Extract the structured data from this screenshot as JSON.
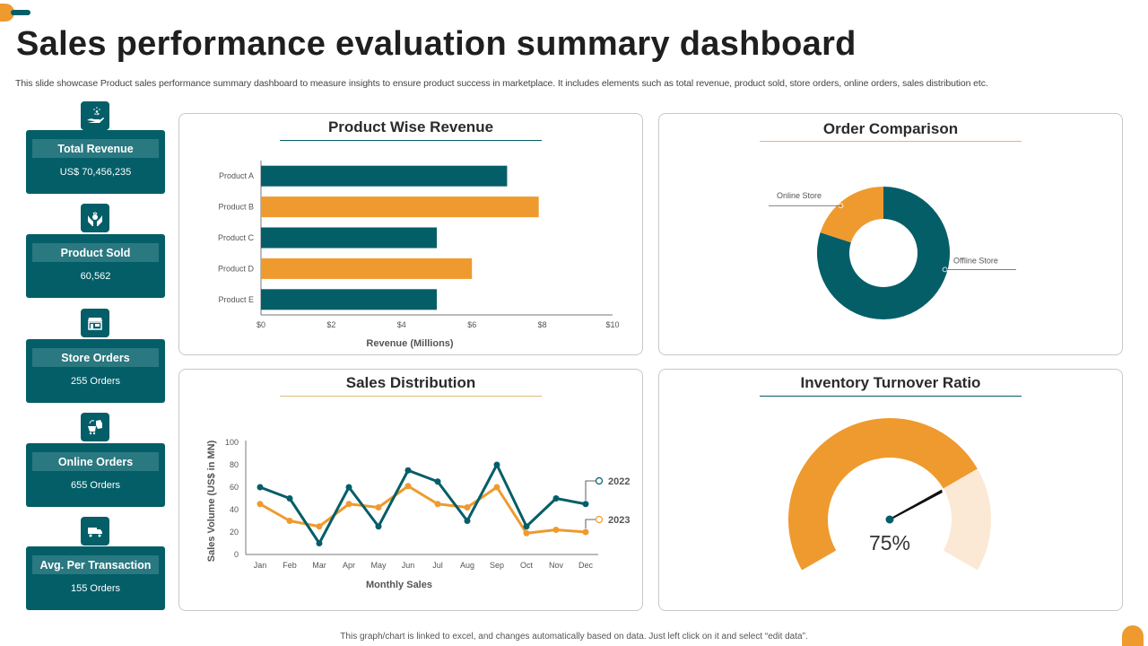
{
  "header": {
    "title": "Sales performance evaluation summary dashboard",
    "subtitle": "This slide showcase Product sales performance summary dashboard to measure insights to ensure product success in marketplace. It includes elements such as total revenue, product sold, store orders, online orders, sales distribution etc."
  },
  "kpis": [
    {
      "icon": "money-hand-icon",
      "label": "Total Revenue",
      "value": "US$ 70,456,235"
    },
    {
      "icon": "hands-product-icon",
      "label": "Product Sold",
      "value": "60,562"
    },
    {
      "icon": "storefront-icon",
      "label": "Store Orders",
      "value": "255 Orders"
    },
    {
      "icon": "cart-box-icon",
      "label": "Online Orders",
      "value": "655 Orders"
    },
    {
      "icon": "truck-icon",
      "label": "Avg. Per Transaction",
      "value": "155 Orders"
    }
  ],
  "colors": {
    "teal": "#035e68",
    "orange": "#ef9a2e",
    "light_orange": "#fbe9d5"
  },
  "footer": "This graph/chart is linked to excel, and changes automatically based on data. Just left click on it and select “edit data”.",
  "chart_data": [
    {
      "id": "product-revenue",
      "type": "bar",
      "orientation": "horizontal",
      "title": "Product Wise Revenue",
      "categories": [
        "Product A",
        "Product B",
        "Product C",
        "Product D",
        "Product E"
      ],
      "values": [
        7,
        7.9,
        5,
        6,
        5
      ],
      "bar_colors": [
        "#035e68",
        "#ef9a2e",
        "#035e68",
        "#ef9a2e",
        "#035e68"
      ],
      "xlabel": "Revenue (Millions)",
      "ylabel": "",
      "xlim": [
        0,
        10
      ],
      "xticks": [
        "$0",
        "$2",
        "$4",
        "$6",
        "$8",
        "$10"
      ],
      "grid": false
    },
    {
      "id": "order-comparison",
      "type": "pie",
      "donut": true,
      "title": "Order Comparison",
      "labels": [
        "Offline Store",
        "Online Store"
      ],
      "values": [
        80,
        20
      ],
      "colors": [
        "#035e68",
        "#ef9a2e"
      ]
    },
    {
      "id": "sales-distribution",
      "type": "line",
      "title": "Sales Distribution",
      "x": [
        "Jan",
        "Feb",
        "Mar",
        "Apr",
        "May",
        "Jun",
        "Jul",
        "Aug",
        "Sep",
        "Oct",
        "Nov",
        "Dec"
      ],
      "series": [
        {
          "name": "2022",
          "color": "#035e68",
          "values": [
            60,
            50,
            10,
            60,
            25,
            75,
            65,
            30,
            80,
            25,
            50,
            45
          ]
        },
        {
          "name": "2023",
          "color": "#ef9a2e",
          "values": [
            45,
            30,
            25,
            45,
            42,
            61,
            45,
            42,
            60,
            19,
            22,
            20
          ]
        }
      ],
      "xlabel": "Monthly Sales",
      "ylabel": "Sales Volume (US$ in MN)",
      "ylim": [
        0,
        100
      ],
      "yticks": [
        "0",
        "20",
        "40",
        "60",
        "80",
        "100"
      ],
      "legend": "right",
      "grid": false
    },
    {
      "id": "inventory-turnover",
      "type": "gauge",
      "title": "Inventory Turnover Ratio",
      "value": 75,
      "max": 100,
      "label": "75%"
    }
  ]
}
